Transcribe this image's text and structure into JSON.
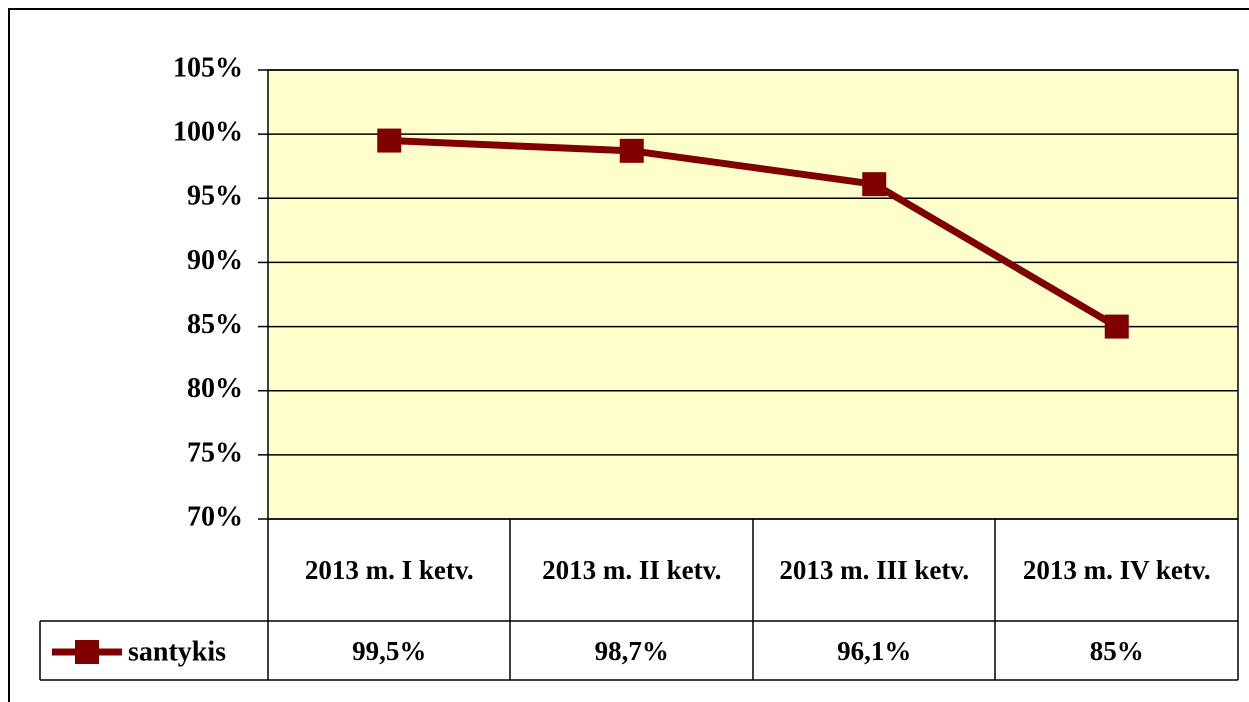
{
  "chart_data": {
    "type": "line",
    "categories": [
      "2013 m. I ketv.",
      "2013 m. II ketv.",
      "2013 m. III ketv.",
      "2013 m. IV ketv."
    ],
    "series": [
      {
        "name": "santykis",
        "color": "#800000",
        "values": [
          99.5,
          98.7,
          96.1,
          85
        ],
        "value_labels": [
          "99,5%",
          "98,7%",
          "96,1%",
          "85%"
        ]
      }
    ],
    "ylim": [
      70,
      105
    ],
    "yticks": [
      {
        "value": 70,
        "label": "70%"
      },
      {
        "value": 75,
        "label": "75%"
      },
      {
        "value": 80,
        "label": "80%"
      },
      {
        "value": 85,
        "label": "85%"
      },
      {
        "value": 90,
        "label": "90%"
      },
      {
        "value": 95,
        "label": "95%"
      },
      {
        "value": 100,
        "label": "100%"
      },
      {
        "value": 105,
        "label": "105%"
      }
    ],
    "grid": true,
    "plot_background": "#ffffcc"
  }
}
